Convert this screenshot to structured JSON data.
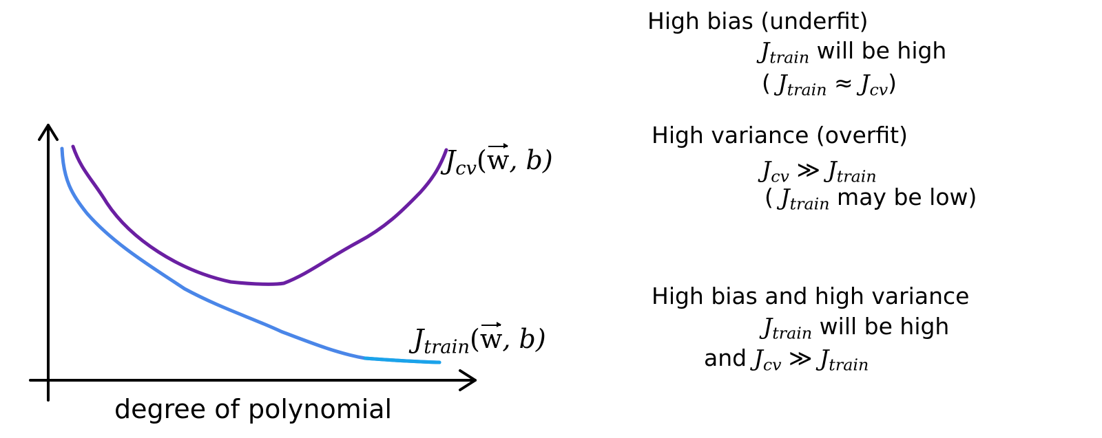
{
  "diagram": {
    "x_axis_label": "degree of polynomial",
    "curves": {
      "cv": {
        "name": "J",
        "subscript": "cv",
        "args_prefix": "(",
        "w": "w",
        "args_suffix": ", b)",
        "color": "#6a1fa2"
      },
      "train": {
        "name": "J",
        "subscript": "train",
        "args_prefix": "(",
        "w": "w",
        "args_suffix": ", b)",
        "color": "#4a86e8"
      }
    }
  },
  "notes": {
    "bias": {
      "heading": "High bias (underfit)",
      "line1": {
        "j": "J",
        "sub": "train",
        "text": " will be high"
      },
      "line2": {
        "open": "( ",
        "j1": "J",
        "sub1": "train",
        "op": " ≈ ",
        "j2": "J",
        "sub2": "cv",
        "close": ")"
      }
    },
    "variance": {
      "heading": "High variance (overfit)",
      "line1": {
        "j1": "J",
        "sub1": "cv",
        "op": " ≫ ",
        "j2": "J",
        "sub2": "train"
      },
      "line2": {
        "open": "( ",
        "j": "J",
        "sub": "train",
        "text": " may be low)"
      }
    },
    "both": {
      "heading": "High bias and high variance",
      "line1": {
        "j": "J",
        "sub": "train",
        "text": " will be high"
      },
      "line2": {
        "and": "and ",
        "j1": "J",
        "sub1": "cv",
        "op": " ≫ ",
        "j2": "J",
        "sub2": "train"
      }
    }
  }
}
